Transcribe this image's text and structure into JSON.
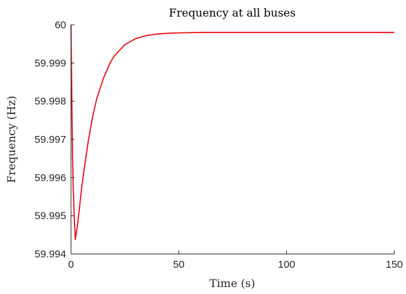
{
  "chart_data": {
    "type": "line",
    "title": "Frequency at all buses",
    "xlabel": "Time (s)",
    "ylabel": "Frequency (Hz)",
    "xlim": [
      0,
      150
    ],
    "ylim": [
      59.994,
      60
    ],
    "xticks": [
      0,
      50,
      100,
      150
    ],
    "xtick_labels": [
      "0",
      "50",
      "100",
      "150"
    ],
    "yticks": [
      59.994,
      59.995,
      59.996,
      59.997,
      59.998,
      59.999,
      60
    ],
    "ytick_labels": [
      "59.994",
      "59.995",
      "59.996",
      "59.997",
      "59.998",
      "59.999",
      "60"
    ],
    "grid": false,
    "legend": "none",
    "series": [
      {
        "color": "#e8000b",
        "x": [
          0,
          0.3,
          0.6,
          1,
          1.5,
          2,
          3,
          4,
          5,
          6,
          8,
          10,
          12,
          15,
          18,
          20,
          25,
          30,
          35,
          40,
          45,
          50,
          60,
          70,
          80,
          100,
          120,
          150
        ],
        "y": [
          60,
          59.9985,
          59.997,
          59.9958,
          59.995,
          59.99438,
          59.99475,
          59.99525,
          59.99575,
          59.99618,
          59.99695,
          59.99758,
          59.99808,
          59.99859,
          59.99899,
          59.99918,
          59.99948,
          59.99964,
          59.99972,
          59.99976,
          59.99978,
          59.99979,
          59.9998,
          59.9998,
          59.9998,
          59.9998,
          59.9998,
          59.9998
        ]
      }
    ]
  }
}
